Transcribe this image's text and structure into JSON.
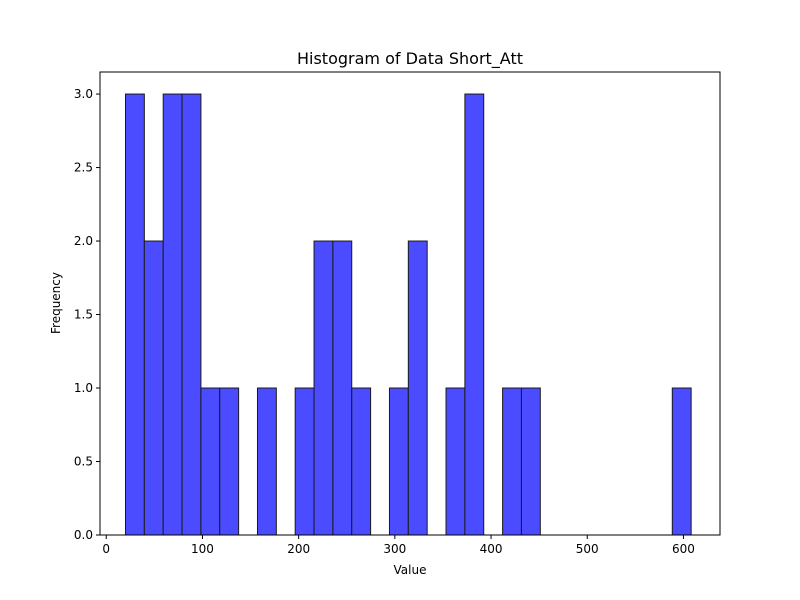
{
  "chart_data": {
    "type": "bar",
    "subtype": "histogram",
    "title": "Histogram of Data Short_Att",
    "xlabel": "Value",
    "ylabel": "Frequency",
    "xlim": [
      -6.5,
      638
    ],
    "ylim": [
      0,
      3.15
    ],
    "xticks": [
      0,
      100,
      200,
      300,
      400,
      500,
      600
    ],
    "yticks": [
      0.0,
      0.5,
      1.0,
      1.5,
      2.0,
      2.5,
      3.0
    ],
    "xtick_labels": [
      "0",
      "100",
      "200",
      "300",
      "400",
      "500",
      "600"
    ],
    "ytick_labels": [
      "0.0",
      "0.5",
      "1.0",
      "1.5",
      "2.0",
      "2.5",
      "3.0"
    ],
    "grid": false,
    "bar_color": "#4b4bff",
    "edge_color": "#1a1a1a",
    "bin_edges": [
      20,
      39.6,
      59.2,
      78.8,
      98.4,
      118,
      137.6,
      157.2,
      176.8,
      196.4,
      216,
      235.6,
      255.2,
      274.8,
      294.4,
      314,
      333.6,
      353.2,
      372.8,
      392.4,
      412,
      431.6,
      451.2,
      470.8,
      490.4,
      510,
      529.6,
      549.2,
      568.8,
      588.4,
      608
    ],
    "counts": [
      3,
      2,
      3,
      3,
      1,
      1,
      0,
      1,
      0,
      1,
      2,
      2,
      1,
      0,
      1,
      2,
      0,
      1,
      3,
      0,
      1,
      1,
      0,
      0,
      0,
      0,
      0,
      0,
      0,
      1
    ]
  }
}
